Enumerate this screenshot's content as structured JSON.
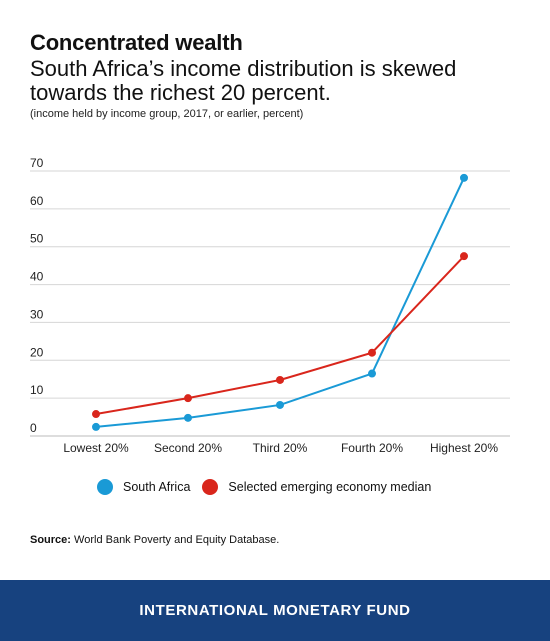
{
  "header": {
    "title": "Concentrated wealth",
    "subtitle": "South Africa’s income distribution is skewed towards the richest 20 percent.",
    "note": "(income held by income group, 2017, or earlier, percent)"
  },
  "chart_data": {
    "type": "line",
    "categories": [
      "Lowest 20%",
      "Second 20%",
      "Third 20%",
      "Fourth 20%",
      "Highest 20%"
    ],
    "ylim": [
      0,
      70
    ],
    "yticks": [
      0,
      10,
      20,
      30,
      40,
      50,
      60,
      70
    ],
    "grid": true,
    "legend_position": "bottom",
    "series": [
      {
        "name": "South Africa",
        "color": "#1a9ad6",
        "values": [
          2.4,
          4.8,
          8.2,
          16.5,
          68.2
        ]
      },
      {
        "name": "Selected emerging economy median",
        "color": "#d9261c",
        "values": [
          5.8,
          10.0,
          14.8,
          22.0,
          47.5
        ]
      }
    ]
  },
  "source": {
    "label": "Source:",
    "text": "World Bank Poverty and Equity Database."
  },
  "footer": {
    "text": "INTERNATIONAL MONETARY FUND"
  }
}
